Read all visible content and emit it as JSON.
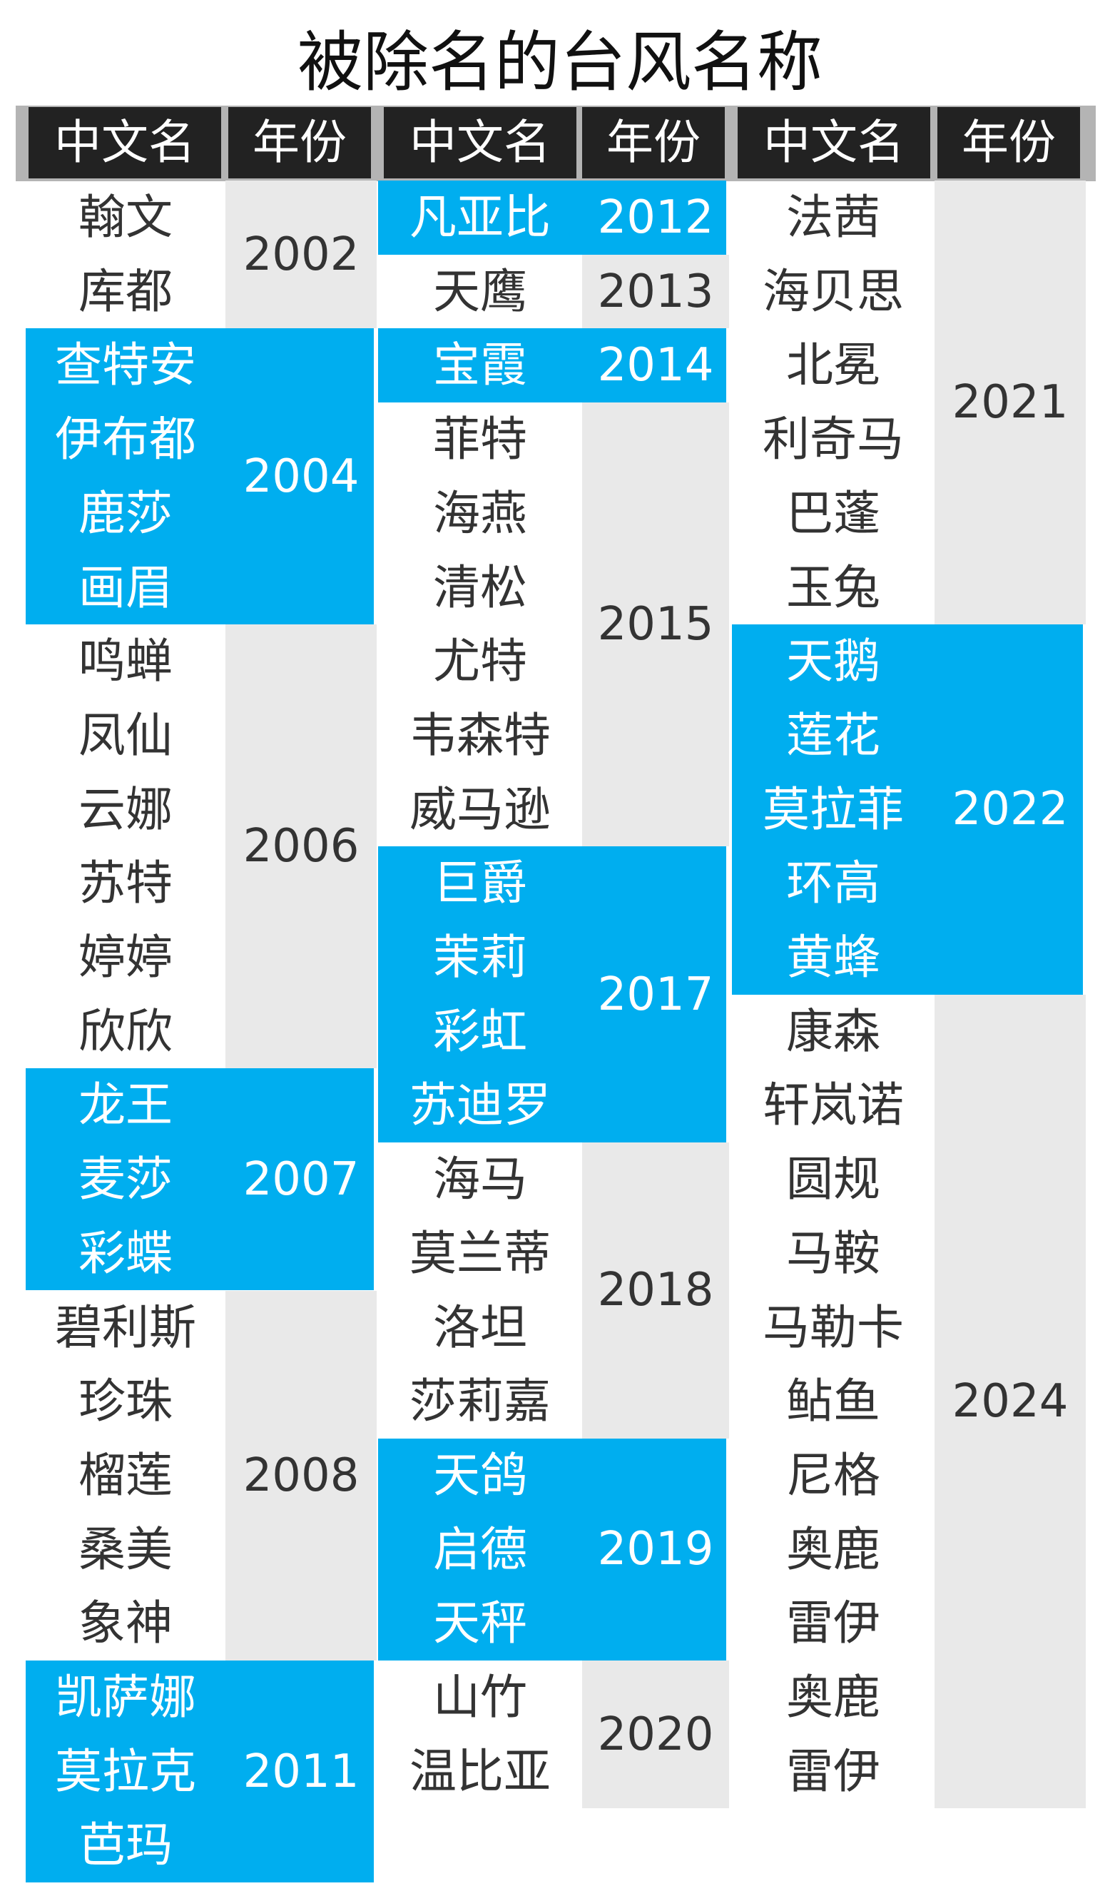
{
  "title": "被除名的台风名称",
  "headers": [
    "中文名",
    "年份",
    "中文名",
    "年份",
    "中文名",
    "年份"
  ],
  "colors": {
    "accent": "#00aeef",
    "year_gray": "#e9e9e9",
    "header_bg": "#222222",
    "header_text": "#ffffff",
    "text": "#333333"
  },
  "columns": [
    {
      "groups": [
        {
          "year": "2002",
          "hl": false,
          "names": [
            "翰文",
            "库都"
          ]
        },
        {
          "year": "2004",
          "hl": true,
          "names": [
            "查特安",
            "伊布都",
            "鹿莎",
            "画眉"
          ]
        },
        {
          "year": "2006",
          "hl": false,
          "names": [
            "鸣蝉",
            "凤仙",
            "云娜",
            "苏特",
            "婷婷",
            "欣欣"
          ]
        },
        {
          "year": "2007",
          "hl": true,
          "names": [
            "龙王",
            "麦莎",
            "彩蝶"
          ]
        },
        {
          "year": "2008",
          "hl": false,
          "names": [
            "碧利斯",
            "珍珠",
            "榴莲",
            "桑美",
            "象神"
          ]
        },
        {
          "year": "2011",
          "hl": true,
          "names": [
            "凯萨娜",
            "莫拉克",
            "芭玛"
          ]
        }
      ]
    },
    {
      "groups": [
        {
          "year": "2012",
          "hl": true,
          "names": [
            "凡亚比"
          ]
        },
        {
          "year": "2013",
          "hl": false,
          "names": [
            "天鹰"
          ]
        },
        {
          "year": "2014",
          "hl": true,
          "names": [
            "宝霞"
          ]
        },
        {
          "year": "2015",
          "hl": false,
          "names": [
            "菲特",
            "海燕",
            "清松",
            "尤特",
            "韦森特",
            "威马逊"
          ]
        },
        {
          "year": "2017",
          "hl": true,
          "names": [
            "巨爵",
            "茉莉",
            "彩虹",
            "苏迪罗"
          ]
        },
        {
          "year": "2018",
          "hl": false,
          "names": [
            "海马",
            "莫兰蒂",
            "洛坦",
            "莎莉嘉"
          ]
        },
        {
          "year": "2019",
          "hl": true,
          "names": [
            "天鸽",
            "启德",
            "天秤"
          ]
        },
        {
          "year": "2020",
          "hl": false,
          "names": [
            "山竹",
            "温比亚"
          ]
        }
      ]
    },
    {
      "groups": [
        {
          "year": "2021",
          "hl": false,
          "names": [
            "法茜",
            "海贝思",
            "北冕",
            "利奇马",
            "巴蓬",
            "玉兔"
          ]
        },
        {
          "year": "2022",
          "hl": true,
          "names": [
            "天鹅",
            "莲花",
            "莫拉菲",
            "环高",
            "黄蜂"
          ]
        },
        {
          "year": "2024",
          "hl": false,
          "names": [
            "康森",
            "轩岚诺",
            "圆规",
            "马鞍",
            "马勒卡",
            "鲇鱼",
            "尼格",
            "奥鹿",
            "雷伊",
            "奥鹿",
            "雷伊"
          ]
        }
      ]
    }
  ]
}
